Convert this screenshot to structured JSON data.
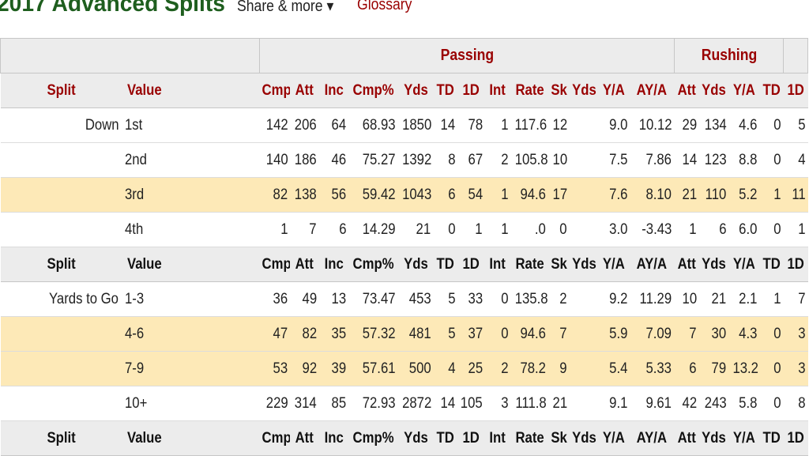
{
  "header": {
    "title": "2017 Advanced Splits",
    "share_label": "Share & more ▾",
    "glossary_label": "Glossary"
  },
  "table": {
    "groups": [
      "Passing",
      "Rushing"
    ],
    "columns": [
      "Split",
      "Value",
      "Cmp",
      "Att",
      "Inc",
      "Cmp%",
      "Yds",
      "TD",
      "1D",
      "Int",
      "Rate",
      "Sk",
      "Yds",
      "Y/A",
      "AY/A",
      "Att",
      "Yds",
      "Y/A",
      "TD",
      "1D"
    ],
    "sections": [
      {
        "split": "Down",
        "rows": [
          {
            "value": "1st",
            "cells": [
              "142",
              "206",
              "64",
              "68.93",
              "1850",
              "14",
              "78",
              "1",
              "117.6",
              "12",
              "",
              "9.0",
              "10.12",
              "29",
              "134",
              "4.6",
              "0",
              "5"
            ],
            "highlight": false
          },
          {
            "value": "2nd",
            "cells": [
              "140",
              "186",
              "46",
              "75.27",
              "1392",
              "8",
              "67",
              "2",
              "105.8",
              "10",
              "",
              "7.5",
              "7.86",
              "14",
              "123",
              "8.8",
              "0",
              "4"
            ],
            "highlight": false
          },
          {
            "value": "3rd",
            "cells": [
              "82",
              "138",
              "56",
              "59.42",
              "1043",
              "6",
              "54",
              "1",
              "94.6",
              "17",
              "",
              "7.6",
              "8.10",
              "21",
              "110",
              "5.2",
              "1",
              "11"
            ],
            "highlight": true
          },
          {
            "value": "4th",
            "cells": [
              "1",
              "7",
              "6",
              "14.29",
              "21",
              "0",
              "1",
              "1",
              ".0",
              "0",
              "",
              "3.0",
              "-3.43",
              "1",
              "6",
              "6.0",
              "0",
              "1"
            ],
            "highlight": false
          }
        ]
      },
      {
        "split": "Yards to Go",
        "rows": [
          {
            "value": "1-3",
            "cells": [
              "36",
              "49",
              "13",
              "73.47",
              "453",
              "5",
              "33",
              "0",
              "135.8",
              "2",
              "",
              "9.2",
              "11.29",
              "10",
              "21",
              "2.1",
              "1",
              "7"
            ],
            "highlight": false
          },
          {
            "value": "4-6",
            "cells": [
              "47",
              "82",
              "35",
              "57.32",
              "481",
              "5",
              "37",
              "0",
              "94.6",
              "7",
              "",
              "5.9",
              "7.09",
              "7",
              "30",
              "4.3",
              "0",
              "3"
            ],
            "highlight": true
          },
          {
            "value": "7-9",
            "cells": [
              "53",
              "92",
              "39",
              "57.61",
              "500",
              "4",
              "25",
              "2",
              "78.2",
              "9",
              "",
              "5.4",
              "5.33",
              "6",
              "79",
              "13.2",
              "0",
              "3"
            ],
            "highlight": true
          },
          {
            "value": "10+",
            "cells": [
              "229",
              "314",
              "85",
              "72.93",
              "2872",
              "14",
              "105",
              "3",
              "111.8",
              "21",
              "",
              "9.1",
              "9.61",
              "42",
              "243",
              "5.8",
              "0",
              "8"
            ],
            "highlight": false
          }
        ]
      }
    ]
  },
  "colors": {
    "title_green": "#1e5e1e",
    "header_red": "#990000",
    "highlight_row": "#fde9b7",
    "header_bg": "#ececec"
  }
}
